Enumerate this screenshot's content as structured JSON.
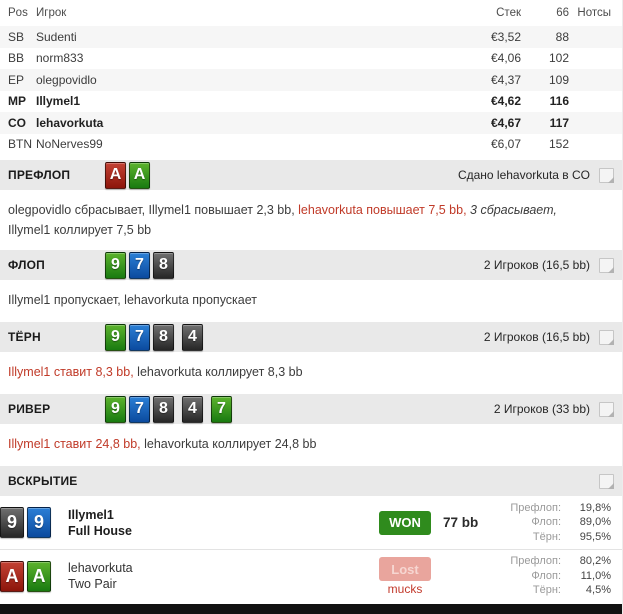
{
  "colors": {
    "section_bar_bg": "#e9e9e9",
    "action_red": "#c03a28",
    "won_green": "#2f8b1d",
    "lost_pink": "#e9a59d",
    "muck_red": "#c2392b"
  },
  "players_table": {
    "headers": {
      "pos": "Pos",
      "player": "Игрок",
      "stack": "Стек",
      "count": "66",
      "notes": "Нотсы"
    },
    "rows": [
      {
        "pos": "SB",
        "name": "Sudenti",
        "stack": "€3,52",
        "count": "88"
      },
      {
        "pos": "BB",
        "name": "norm833",
        "stack": "€4,06",
        "count": "102"
      },
      {
        "pos": "EP",
        "name": "olegpovidlo",
        "stack": "€4,37",
        "count": "109"
      },
      {
        "pos": "MP",
        "name": "Illymel1",
        "stack": "€4,62",
        "count": "116"
      },
      {
        "pos": "CO",
        "name": "lehavorkuta",
        "stack": "€4,67",
        "count": "117"
      },
      {
        "pos": "BTN",
        "name": "NoNerves99",
        "stack": "€6,07",
        "count": "152"
      }
    ]
  },
  "streets": {
    "preflop": {
      "title": "ПРЕФЛОП",
      "cards": [
        {
          "rank": "A",
          "suit": "hearts"
        },
        {
          "rank": "A",
          "suit": "clubs"
        }
      ],
      "info": "Сдано lehavorkuta в CO",
      "action": {
        "seg1": "olegpovidlo сбрасывает, Illymel1 повышает 2,3 bb, ",
        "seg2": "lehavorkuta повышает 7,5 bb,",
        "seg3": " 3 сбрасывает, ",
        "seg4": "Illymel1 коллирует 7,5 bb"
      }
    },
    "flop": {
      "title": "ФЛОП",
      "cards": [
        {
          "rank": "9",
          "suit": "clubs"
        },
        {
          "rank": "7",
          "suit": "diamonds"
        },
        {
          "rank": "8",
          "suit": "spades"
        }
      ],
      "info": "2 Игроков (16,5 bb)",
      "action": {
        "seg1": "Illymel1 пропускает, lehavorkuta пропускает"
      }
    },
    "turn": {
      "title": "ТЁРН",
      "cards": [
        {
          "rank": "9",
          "suit": "clubs"
        },
        {
          "rank": "7",
          "suit": "diamonds"
        },
        {
          "rank": "8",
          "suit": "spades"
        },
        {
          "rank": "4",
          "suit": "spades"
        }
      ],
      "info": "2 Игроков (16,5 bb)",
      "action": {
        "seg1": "Illymel1 ставит 8,3 bb,",
        "seg2": " lehavorkuta коллирует 8,3 bb"
      }
    },
    "river": {
      "title": "РИВЕР",
      "cards": [
        {
          "rank": "9",
          "suit": "clubs"
        },
        {
          "rank": "7",
          "suit": "diamonds"
        },
        {
          "rank": "8",
          "suit": "spades"
        },
        {
          "rank": "4",
          "suit": "spades"
        },
        {
          "rank": "7",
          "suit": "clubs"
        }
      ],
      "info": "2 Игроков (33 bb)",
      "action": {
        "seg1": "Illymel1 ставит 24,8 bb,",
        "seg2": " lehavorkuta коллирует 24,8 bb"
      }
    }
  },
  "showdown": {
    "title": "ВСКРЫТИЕ",
    "rows": [
      {
        "cards": [
          {
            "rank": "9",
            "suit": "spades"
          },
          {
            "rank": "9",
            "suit": "diamonds"
          }
        ],
        "name": "Illymel1",
        "hand": "Full House",
        "result_label": "WON",
        "amount": "77 bb",
        "stats": {
          "preflop_label": "Префлоп:",
          "preflop": "19,8%",
          "flop_label": "Флоп:",
          "flop": "89,0%",
          "turn_label": "Тёрн:",
          "turn": "95,5%"
        }
      },
      {
        "cards": [
          {
            "rank": "A",
            "suit": "hearts"
          },
          {
            "rank": "A",
            "suit": "clubs"
          }
        ],
        "name": "lehavorkuta",
        "hand": "Two Pair",
        "result_label": "Lost",
        "muck_label": "mucks",
        "stats": {
          "preflop_label": "Префлоп:",
          "preflop": "80,2%",
          "flop_label": "Флоп:",
          "flop": "11,0%",
          "turn_label": "Тёрн:",
          "turn": "4,5%"
        }
      }
    ]
  }
}
